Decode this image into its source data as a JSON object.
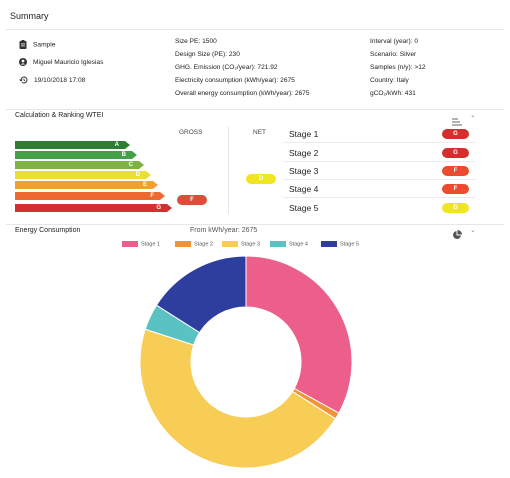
{
  "summary": {
    "title": "Summary",
    "sample": "Sample",
    "user": "Miguel Mauricio Iglesias",
    "date": "19/10/2018 17:08",
    "col2": [
      "Size PE: 1500",
      "Design Size (PE): 230",
      "GHG. Emission (CO₂/year): 721.92",
      "Electricity consumption (kWh/year): 2675",
      "Overall energy consumption (kWh/year): 2675"
    ],
    "col3": [
      "Interval (year): 0",
      "Scenario: Silver",
      "Samples (n/y): >12",
      "Country: Italy",
      "gCO₂/kWh: 431"
    ]
  },
  "ranking": {
    "title": "Calculation & Ranking WTEI",
    "gross_label": "GROSS",
    "net_label": "NET",
    "scale": [
      {
        "grade": "A",
        "color": "#2e7d32"
      },
      {
        "grade": "B",
        "color": "#43a047"
      },
      {
        "grade": "C",
        "color": "#7cb342"
      },
      {
        "grade": "D",
        "color": "#e8e22f"
      },
      {
        "grade": "E",
        "color": "#f0a030"
      },
      {
        "grade": "F",
        "color": "#ec6a2f"
      },
      {
        "grade": "G",
        "color": "#d32f2f"
      }
    ],
    "gross_value": "F",
    "net_value": "D",
    "stages": [
      {
        "label": "Stage 1",
        "grade": "G",
        "color": "#d32f2f"
      },
      {
        "label": "Stage 2",
        "grade": "G",
        "color": "#d32f2f"
      },
      {
        "label": "Stage 3",
        "grade": "F",
        "color": "#ec4b2f"
      },
      {
        "label": "Stage 4",
        "grade": "F",
        "color": "#ec4b2f"
      },
      {
        "label": "Stage 5",
        "grade": "D",
        "color": "#f0e523"
      }
    ]
  },
  "energy": {
    "title": "Energy Consumption",
    "subtitle": "From kWh/year: 2675"
  },
  "chart_data": {
    "type": "pie",
    "categories": [
      "Stage 1",
      "Stage 2",
      "Stage 3",
      "Stage 4",
      "Stage 5"
    ],
    "values": [
      33,
      1,
      46,
      4,
      16
    ],
    "colors": [
      "#ec5f8a",
      "#f0943a",
      "#f7cd55",
      "#5bc2c4",
      "#2e3e9e"
    ],
    "donut": true,
    "legend": "top"
  },
  "icons": {
    "clipboard": "clipboard-icon",
    "user": "user-icon",
    "history": "history-icon",
    "sort": "sort-icon",
    "pie": "pie-chart-icon",
    "chevron": "chevron-down-icon"
  }
}
